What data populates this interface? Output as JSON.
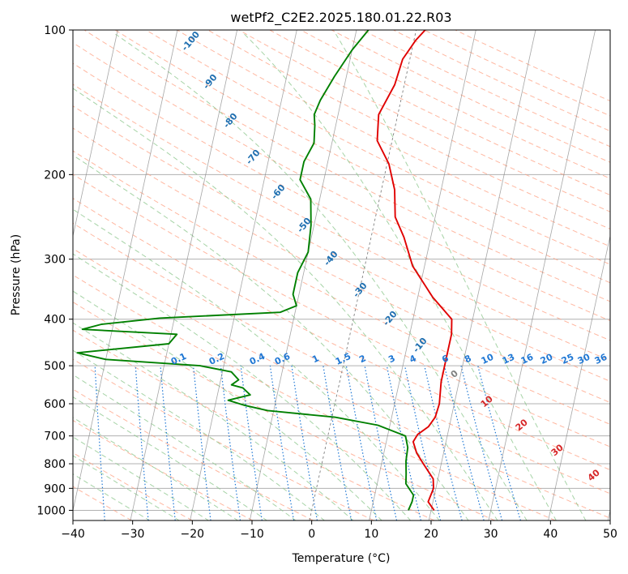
{
  "chart_data": {
    "type": "line",
    "subtype": "skew-t log-p diagram",
    "title": "wetPf2_C2E2.2025.180.01.22.R03",
    "xlabel": "Temperature (°C)",
    "ylabel": "Pressure (hPa)",
    "xlim": [
      -40,
      50
    ],
    "ylim": [
      1050,
      100
    ],
    "y_scale": "log",
    "grid": true,
    "x_ticks": [
      "−40",
      "−30",
      "−20",
      "−10",
      "0",
      "10",
      "20",
      "30",
      "40",
      "50"
    ],
    "y_ticks": [
      "100",
      "200",
      "300",
      "400",
      "500",
      "600",
      "700",
      "800",
      "900",
      "1000"
    ],
    "series": [
      {
        "color": "#e00000",
        "points": [
          [
            20.5,
            1000
          ],
          [
            19.2,
            960
          ],
          [
            19.6,
            900
          ],
          [
            19.2,
            860
          ],
          [
            17.0,
            800
          ],
          [
            15.5,
            760
          ],
          [
            14.5,
            720
          ],
          [
            15.0,
            695
          ],
          [
            16.5,
            670
          ],
          [
            17.3,
            640
          ],
          [
            17.5,
            600
          ],
          [
            17.0,
            540
          ],
          [
            17.0,
            480
          ],
          [
            17.0,
            430
          ],
          [
            16.5,
            400
          ],
          [
            12.5,
            360
          ],
          [
            8.0,
            310
          ],
          [
            5.5,
            270
          ],
          [
            3.3,
            245
          ],
          [
            2.2,
            215
          ],
          [
            0.3,
            190
          ],
          [
            -2.5,
            170
          ],
          [
            -3.2,
            150
          ],
          [
            -1.6,
            130
          ],
          [
            -1.2,
            115
          ],
          [
            0.3,
            105
          ],
          [
            1.5,
            100
          ]
        ]
      },
      {
        "color": "#008000",
        "points": [
          [
            16.2,
            1000
          ],
          [
            16.5,
            960
          ],
          [
            16.5,
            930
          ],
          [
            14.8,
            880
          ],
          [
            14.5,
            840
          ],
          [
            14.0,
            790
          ],
          [
            13.8,
            740
          ],
          [
            13.0,
            700
          ],
          [
            8.0,
            665
          ],
          [
            0.5,
            640
          ],
          [
            -11.0,
            620
          ],
          [
            -15.0,
            605
          ],
          [
            -18.0,
            590
          ],
          [
            -14.5,
            575
          ],
          [
            -16.0,
            556
          ],
          [
            -18.0,
            548
          ],
          [
            -17.0,
            535
          ],
          [
            -18.5,
            515
          ],
          [
            -24.0,
            500
          ],
          [
            -40.0,
            485
          ],
          [
            -45.0,
            470
          ],
          [
            -30.0,
            450
          ],
          [
            -29.0,
            430
          ],
          [
            -45.0,
            420
          ],
          [
            -42.0,
            410
          ],
          [
            -32.5,
            398
          ],
          [
            -12.5,
            387
          ],
          [
            -10.0,
            375
          ],
          [
            -11.0,
            355
          ],
          [
            -11.0,
            320
          ],
          [
            -10.0,
            290
          ],
          [
            -10.5,
            255
          ],
          [
            -11.5,
            225
          ],
          [
            -14.0,
            205
          ],
          [
            -14.0,
            188
          ],
          [
            -13.0,
            172
          ],
          [
            -13.5,
            158
          ],
          [
            -14.0,
            150
          ],
          [
            -13.5,
            140
          ],
          [
            -12.0,
            125
          ],
          [
            -10.0,
            110
          ],
          [
            -8.0,
            100
          ]
        ]
      }
    ],
    "labels": {
      "isotherms": [
        "-100",
        "-90",
        "-80",
        "-70",
        "-60",
        "-50",
        "-40",
        "-30",
        "-20",
        "-10"
      ],
      "mixing_ratio": [
        "0.1",
        "0.2",
        "0.4",
        "0.6",
        "1",
        "1.5",
        "2",
        "3",
        "4",
        "6",
        "8",
        "10",
        "13",
        "16",
        "20",
        "25",
        "30",
        "36"
      ],
      "moist_adiabats": [
        "0",
        "10",
        "20",
        "30",
        "40"
      ]
    },
    "colors": {
      "grid": "#b0b0b0",
      "isotherm": "#808080",
      "dry_adiabat": "#ff9f80",
      "moist_adiabat": "#90c890",
      "mixing_ratio": "#1f77d4",
      "isotherm_label": "#1f6fb0",
      "moist_label": "#d62728",
      "zero_label": "#808080"
    }
  }
}
